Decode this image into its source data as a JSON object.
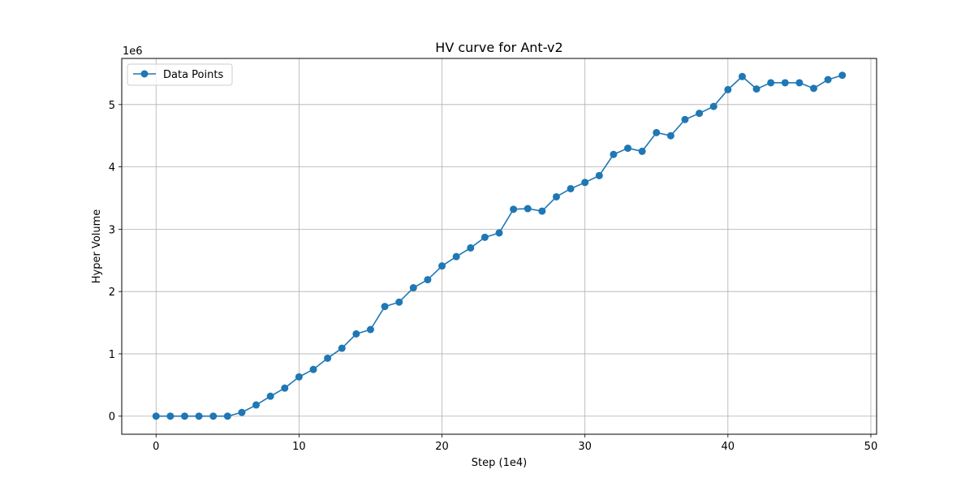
{
  "chart_data": {
    "type": "line",
    "title": "HV curve for Ant-v2",
    "xlabel": "Step (1e4)",
    "ylabel": "Hyper Volume",
    "y_offset_label": "1e6",
    "xlim": [
      -2.4,
      50.4
    ],
    "ylim": [
      -0.29,
      5.74
    ],
    "xticks": [
      0,
      10,
      20,
      30,
      40,
      50
    ],
    "yticks": [
      0,
      1,
      2,
      3,
      4,
      5
    ],
    "grid": true,
    "legend_position": "top-left",
    "x": [
      0,
      1,
      2,
      3,
      4,
      5,
      6,
      7,
      8,
      9,
      10,
      11,
      12,
      13,
      14,
      15,
      16,
      17,
      18,
      19,
      20,
      21,
      22,
      23,
      24,
      25,
      26,
      27,
      28,
      29,
      30,
      31,
      32,
      33,
      34,
      35,
      36,
      37,
      38,
      39,
      40,
      41,
      42,
      43,
      44,
      45,
      46,
      47,
      48
    ],
    "series": [
      {
        "name": "Data Points",
        "color": "#1f77b4",
        "marker": "circle",
        "values": [
          0.0,
          0.0,
          0.0,
          0.0,
          0.0,
          0.0,
          0.06,
          0.18,
          0.32,
          0.45,
          0.63,
          0.75,
          0.93,
          1.09,
          1.32,
          1.39,
          1.76,
          1.83,
          2.06,
          2.19,
          2.41,
          2.56,
          2.7,
          2.87,
          2.94,
          3.32,
          3.33,
          3.29,
          3.52,
          3.65,
          3.75,
          3.86,
          4.2,
          4.3,
          4.25,
          4.55,
          4.5,
          4.76,
          4.86,
          4.97,
          5.24,
          5.45,
          5.25,
          5.35,
          5.35,
          5.35,
          5.26,
          5.4,
          5.47
        ]
      }
    ]
  }
}
